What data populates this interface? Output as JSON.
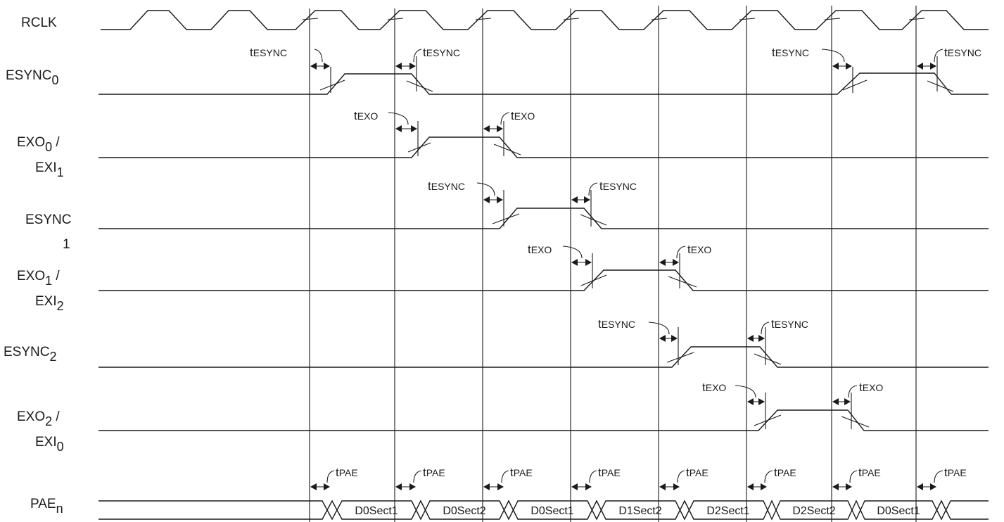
{
  "signals": {
    "rclk": {
      "label": "RCLK"
    },
    "esync0": {
      "main": "ESYNC",
      "sub": "0"
    },
    "exo0_exi1": {
      "line1_main": "EXO",
      "line1_sub": "0",
      "line1_suffix": " /",
      "line2_main": "EXI",
      "line2_sub": "1"
    },
    "esync1": {
      "main": "ESYNC",
      "line2": "1"
    },
    "exo1_exi2": {
      "line1_main": "EXO",
      "line1_sub": "1",
      "line1_suffix": " /",
      "line2_main": "EXI",
      "line2_sub": "2"
    },
    "esync2": {
      "main": "ESYNC",
      "sub": "2"
    },
    "exo2_exi0": {
      "line1_main": "EXO",
      "line1_sub": "2",
      "line1_suffix": " /",
      "line2_main": "EXI",
      "line2_sub": "0"
    },
    "pae": {
      "main": "PAE",
      "sub": "n"
    }
  },
  "timing_labels": {
    "t_esync": {
      "prefix": "t",
      "sub": "ESYNC"
    },
    "t_exo": {
      "prefix": "t",
      "sub": "EXO"
    },
    "t_pae": {
      "prefix": "t",
      "sub": "PAE"
    }
  },
  "pae_bus_segments": [
    "D0Sect1",
    "D0Sect2",
    "D0Sect1",
    "D1Sect2",
    "D2Sect1",
    "D2Sect2",
    "D0Sect1"
  ],
  "colors": {
    "ink": "#1a1a1a",
    "background": "#ffffff"
  }
}
